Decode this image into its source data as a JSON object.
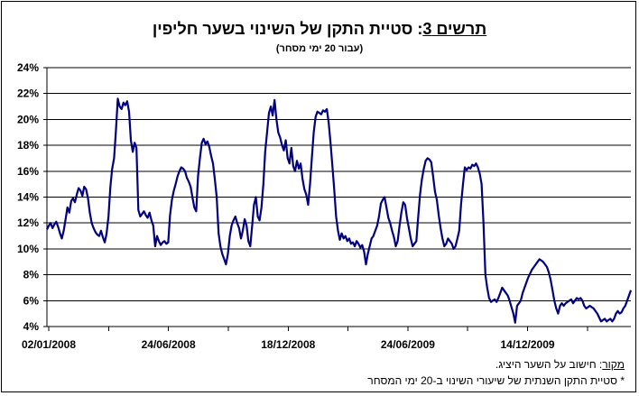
{
  "title_prefix": "תרשים 3",
  "title_text": ": סטיית התקן של השינוי בשער חליפין",
  "subtitle": "(עבור 20 ימי מסחר)",
  "source_label": "מקור",
  "source_text": ": חישוב על השער היציג.",
  "footnote": "* סטיית התקן השנתית של שיעורי השינוי ב-20 ימי המסחר",
  "colors": {
    "line": "#000080",
    "grid": "#000000",
    "dotted": "#4a6fa5"
  },
  "chart_data": {
    "type": "line",
    "title": "תרשים 3: סטיית התקן של השינוי בשער חליפין",
    "subtitle": "(עבור 20 ימי מסחר)",
    "xlabel": "",
    "ylabel": "",
    "ylim": [
      4,
      24
    ],
    "y_ticks": [
      "4%",
      "6%",
      "8%",
      "10%",
      "12%",
      "14%",
      "16%",
      "18%",
      "20%",
      "22%",
      "24%"
    ],
    "x_tick_labels": [
      "02/01/2008",
      "24/06/2008",
      "18/12/2008",
      "24/06/2009",
      "14/12/2009"
    ],
    "grid": "horizontal",
    "legend": "none",
    "dotted_vertical_lines_at_index": [
      484,
      496
    ],
    "series": [
      {
        "values": [
          11.5,
          11.8,
          12.0,
          11.6,
          11.9,
          12.1,
          11.7,
          11.2,
          10.8,
          11.4,
          12.3,
          13.2,
          12.8,
          13.7,
          13.9,
          13.6,
          14.2,
          14.7,
          14.5,
          14.1,
          14.8,
          14.6,
          13.9,
          12.8,
          12.0,
          11.6,
          11.3,
          11.1,
          11.0,
          11.4,
          10.9,
          10.5,
          11.2,
          12.5,
          14.8,
          16.2,
          17.0,
          19.2,
          21.6,
          21.0,
          20.8,
          21.3,
          21.1,
          21.4,
          20.6,
          18.4,
          17.5,
          18.2,
          17.8,
          13.0,
          12.5,
          12.7,
          12.9,
          12.6,
          12.4,
          12.8,
          12.2,
          11.8,
          10.2,
          11.0,
          10.6,
          10.3,
          10.5,
          10.6,
          10.4,
          10.5,
          12.6,
          13.8,
          14.5,
          15.0,
          15.6,
          16.0,
          16.3,
          16.2,
          16.0,
          15.5,
          15.2,
          14.8,
          14.0,
          13.2,
          12.9,
          15.6,
          17.0,
          18.2,
          18.5,
          18.1,
          18.3,
          17.9,
          17.2,
          16.6,
          15.4,
          14.0,
          11.2,
          10.2,
          9.6,
          9.2,
          8.8,
          9.6,
          11.0,
          11.8,
          12.2,
          12.5,
          12.0,
          11.6,
          10.8,
          11.4,
          12.3,
          11.8,
          10.6,
          10.2,
          11.8,
          13.4,
          14.0,
          12.5,
          12.2,
          13.2,
          15.0,
          17.5,
          19.0,
          20.5,
          21.0,
          20.3,
          21.5,
          20.0,
          19.0,
          18.6,
          18.0,
          17.6,
          18.4,
          17.0,
          16.6,
          17.8,
          16.4,
          16.0,
          16.8,
          16.2,
          16.6,
          15.4,
          14.6,
          14.2,
          13.4,
          15.0,
          17.0,
          19.0,
          20.2,
          20.6,
          20.5,
          20.4,
          20.7,
          20.6,
          20.8,
          19.8,
          18.2,
          16.4,
          14.6,
          12.5,
          11.4,
          10.7,
          11.2,
          10.8,
          11.0,
          10.6,
          10.8,
          10.4,
          10.5,
          10.2,
          10.6,
          10.4,
          10.1,
          10.3,
          9.8,
          8.8,
          9.6,
          10.2,
          10.8,
          11.0,
          11.4,
          11.8,
          12.5,
          13.5,
          13.8,
          14.0,
          13.2,
          12.4,
          12.0,
          11.4,
          10.9,
          10.2,
          10.6,
          11.8,
          12.8,
          13.6,
          13.4,
          12.4,
          11.6,
          10.8,
          10.2,
          10.4,
          10.6,
          12.5,
          14.2,
          15.4,
          16.2,
          16.8,
          17.0,
          16.9,
          16.7,
          15.6,
          14.4,
          13.8,
          12.6,
          11.6,
          10.8,
          10.2,
          10.4,
          10.8,
          10.6,
          10.4,
          10.0,
          10.2,
          10.8,
          11.4,
          13.5,
          15.0,
          16.3,
          16.1,
          16.3,
          16.2,
          16.5,
          16.4,
          16.6,
          16.3,
          15.8,
          15.0,
          12.0,
          8.0,
          7.0,
          6.2,
          5.9,
          6.0,
          6.1,
          5.9,
          6.2,
          6.6,
          7.0,
          6.8,
          6.6,
          6.4,
          6.0,
          5.5,
          5.0,
          4.3,
          5.6,
          5.8,
          6.0,
          6.6,
          7.0,
          7.4,
          7.8,
          8.1,
          8.4,
          8.6,
          8.8,
          9.0,
          9.2,
          9.1,
          9.0,
          8.8,
          8.6,
          8.2,
          7.6,
          6.8,
          6.0,
          5.4,
          5.0,
          5.6,
          5.8,
          5.6,
          5.8,
          5.9,
          6.0,
          6.1,
          5.8,
          6.0,
          6.2,
          6.1,
          6.2,
          6.0,
          5.6,
          5.4,
          5.5,
          5.6,
          5.5,
          5.4,
          5.2,
          5.0,
          4.7,
          4.4,
          4.5,
          4.6,
          4.4,
          4.5,
          4.6,
          4.4,
          4.6,
          5.0,
          5.2,
          5.0,
          5.1,
          5.4,
          5.6,
          6.0,
          6.4,
          6.8
        ]
      }
    ]
  }
}
